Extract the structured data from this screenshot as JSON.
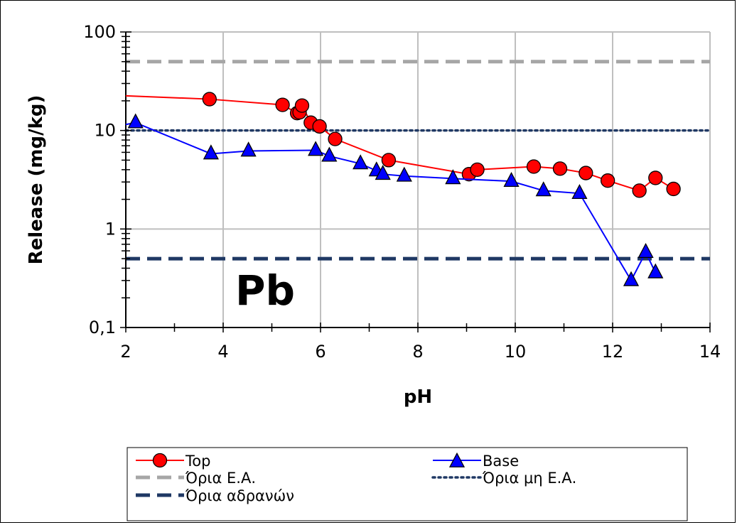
{
  "chart_data": {
    "type": "scatter",
    "xlabel": "pH",
    "ylabel": "Release (mg/kg)",
    "xlim": [
      2,
      14
    ],
    "ylim": [
      0.1,
      100
    ],
    "yscale": "log",
    "grid": true,
    "annotation": "Pb",
    "x_ticks": [
      "2",
      "4",
      "6",
      "8",
      "10",
      "12",
      "14"
    ],
    "y_ticks": [
      "0,1",
      "1",
      "10",
      "100"
    ],
    "series": [
      {
        "name": "Top",
        "color": "#ff0000",
        "marker": "circle",
        "marker_fill": "#ff0000",
        "x": [
          2.0,
          3.72,
          5.22,
          5.52,
          5.57,
          5.62,
          5.8,
          5.98,
          6.3,
          7.4,
          9.05,
          9.22,
          10.38,
          10.92,
          11.45,
          11.9,
          12.55,
          12.88,
          13.25
        ],
        "y": [
          22.5,
          20.8,
          18.2,
          15.0,
          15.3,
          17.9,
          12.0,
          11.0,
          8.2,
          5.0,
          3.6,
          4.0,
          4.3,
          4.1,
          3.7,
          3.1,
          2.45,
          3.3,
          2.55
        ]
      },
      {
        "name": "Base",
        "color": "#0000ff",
        "marker": "triangle",
        "marker_fill": "#0000ff",
        "x": [
          2.0,
          2.2,
          3.75,
          4.52,
          5.9,
          6.18,
          6.82,
          7.15,
          7.28,
          7.72,
          8.72,
          9.92,
          10.58,
          11.32,
          12.38,
          12.68,
          12.88
        ],
        "y": [
          11.5,
          12.0,
          5.8,
          6.2,
          6.3,
          5.5,
          4.6,
          3.9,
          3.6,
          3.45,
          3.25,
          3.05,
          2.45,
          2.3,
          0.3,
          0.58,
          0.36
        ]
      }
    ],
    "reference_lines": [
      {
        "name": "Όρια Ε.Α.",
        "y": 50,
        "color": "#a6a6a6",
        "style": "dashed"
      },
      {
        "name": "Όρια μη Ε.Α.",
        "y": 10,
        "color": "#1f3864",
        "style": "dotted"
      },
      {
        "name": "Όρια αδρανών",
        "y": 0.5,
        "color": "#1f3864",
        "style": "dashed"
      }
    ],
    "legend": {
      "position": "bottom",
      "entries": [
        "Top",
        "Base",
        "Όρια Ε.Α.",
        "Όρια μη Ε.Α.",
        "Όρια αδρανών"
      ]
    }
  }
}
